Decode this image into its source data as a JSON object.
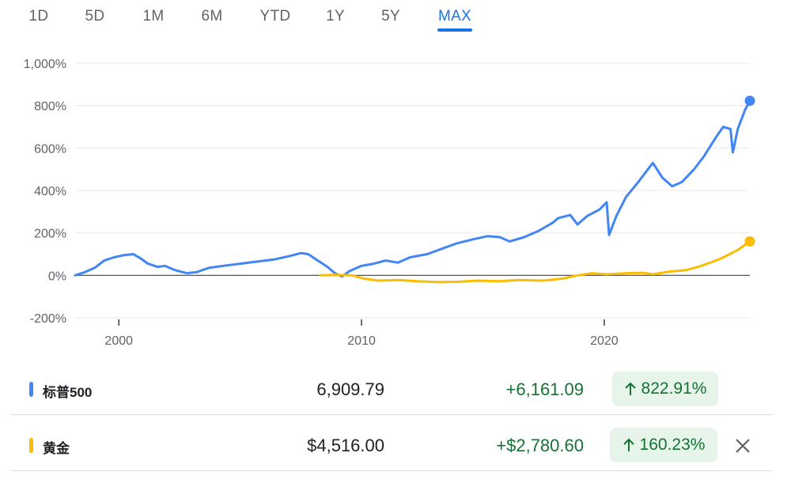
{
  "tabs": {
    "items": [
      "1D",
      "5D",
      "1M",
      "6M",
      "YTD",
      "1Y",
      "5Y",
      "MAX"
    ],
    "active": "MAX"
  },
  "colors": {
    "sp500": "#4285f4",
    "gold": "#fbbc04",
    "positive": "#137333",
    "positive_bg": "#e6f4ea",
    "accent": "#1a73e8"
  },
  "chart_data": {
    "type": "line",
    "y_unit": "%",
    "ylim": [
      -200,
      1000
    ],
    "yticks": [
      "1,000%",
      "800%",
      "600%",
      "400%",
      "200%",
      "0%",
      "-200%"
    ],
    "ytick_values": [
      1000,
      800,
      600,
      400,
      200,
      0,
      -200
    ],
    "xticks": [
      "2000",
      "2010",
      "2020"
    ],
    "xtick_values": [
      2000,
      2010,
      2020
    ],
    "xlim": [
      1998.2,
      2026.0
    ],
    "grid": true,
    "series": [
      {
        "name": "标普500",
        "color": "#4285f4",
        "points": [
          [
            1998.2,
            0
          ],
          [
            1998.6,
            15
          ],
          [
            1999.0,
            35
          ],
          [
            1999.4,
            70
          ],
          [
            1999.8,
            85
          ],
          [
            2000.2,
            95
          ],
          [
            2000.6,
            100
          ],
          [
            2000.9,
            80
          ],
          [
            2001.2,
            55
          ],
          [
            2001.6,
            40
          ],
          [
            2001.9,
            45
          ],
          [
            2002.3,
            25
          ],
          [
            2002.8,
            10
          ],
          [
            2003.2,
            15
          ],
          [
            2003.7,
            35
          ],
          [
            2004.3,
            45
          ],
          [
            2005.0,
            55
          ],
          [
            2005.7,
            65
          ],
          [
            2006.4,
            75
          ],
          [
            2007.0,
            90
          ],
          [
            2007.5,
            105
          ],
          [
            2007.8,
            100
          ],
          [
            2008.2,
            70
          ],
          [
            2008.6,
            40
          ],
          [
            2008.9,
            10
          ],
          [
            2009.2,
            -5
          ],
          [
            2009.5,
            20
          ],
          [
            2010.0,
            45
          ],
          [
            2010.5,
            55
          ],
          [
            2011.0,
            70
          ],
          [
            2011.5,
            60
          ],
          [
            2012.0,
            85
          ],
          [
            2012.7,
            100
          ],
          [
            2013.3,
            125
          ],
          [
            2013.9,
            150
          ],
          [
            2014.6,
            170
          ],
          [
            2015.2,
            185
          ],
          [
            2015.7,
            180
          ],
          [
            2016.1,
            160
          ],
          [
            2016.7,
            180
          ],
          [
            2017.3,
            210
          ],
          [
            2017.9,
            250
          ],
          [
            2018.1,
            270
          ],
          [
            2018.6,
            285
          ],
          [
            2018.9,
            240
          ],
          [
            2019.3,
            280
          ],
          [
            2019.8,
            310
          ],
          [
            2020.1,
            345
          ],
          [
            2020.2,
            190
          ],
          [
            2020.5,
            280
          ],
          [
            2020.9,
            370
          ],
          [
            2021.4,
            440
          ],
          [
            2021.8,
            500
          ],
          [
            2022.0,
            530
          ],
          [
            2022.4,
            460
          ],
          [
            2022.8,
            420
          ],
          [
            2023.2,
            440
          ],
          [
            2023.7,
            500
          ],
          [
            2024.1,
            560
          ],
          [
            2024.6,
            650
          ],
          [
            2024.9,
            700
          ],
          [
            2025.2,
            690
          ],
          [
            2025.3,
            580
          ],
          [
            2025.5,
            690
          ],
          [
            2025.8,
            780
          ],
          [
            2026.0,
            823
          ]
        ],
        "end_label": "822.91%"
      },
      {
        "name": "黄金",
        "color": "#fbbc04",
        "points": [
          [
            2008.3,
            0
          ],
          [
            2009.0,
            2
          ],
          [
            2009.6,
            0
          ],
          [
            2010.1,
            -15
          ],
          [
            2010.7,
            -25
          ],
          [
            2011.5,
            -22
          ],
          [
            2012.3,
            -28
          ],
          [
            2013.2,
            -32
          ],
          [
            2014.0,
            -30
          ],
          [
            2014.8,
            -25
          ],
          [
            2015.6,
            -28
          ],
          [
            2016.5,
            -22
          ],
          [
            2017.5,
            -25
          ],
          [
            2018.3,
            -15
          ],
          [
            2018.9,
            0
          ],
          [
            2019.5,
            10
          ],
          [
            2020.1,
            5
          ],
          [
            2020.9,
            10
          ],
          [
            2021.6,
            12
          ],
          [
            2022.0,
            5
          ],
          [
            2022.7,
            18
          ],
          [
            2023.4,
            25
          ],
          [
            2024.0,
            45
          ],
          [
            2024.6,
            70
          ],
          [
            2025.0,
            90
          ],
          [
            2025.5,
            120
          ],
          [
            2026.0,
            160
          ]
        ],
        "end_label": "160.23%"
      }
    ]
  },
  "quotes": [
    {
      "name": "标普500",
      "price": "6,909.79",
      "change": "+6,161.09",
      "percent": "822.91%",
      "color": "#4285f4"
    },
    {
      "name": "黄金",
      "price": "$4,516.00",
      "change": "+$2,780.60",
      "percent": "160.23%",
      "color": "#fbbc04"
    }
  ]
}
